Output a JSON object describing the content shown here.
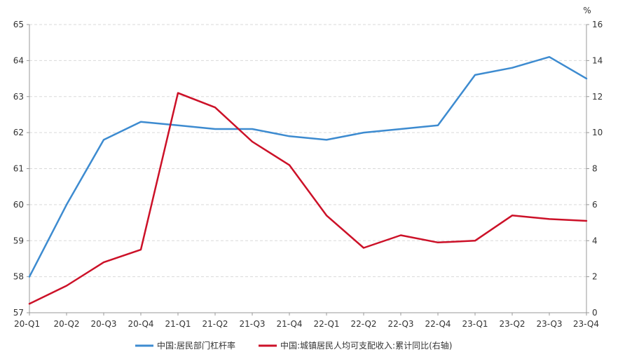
{
  "chart_data": {
    "type": "line",
    "categories": [
      "20-Q1",
      "20-Q2",
      "20-Q3",
      "20-Q4",
      "21-Q1",
      "21-Q2",
      "21-Q3",
      "21-Q4",
      "22-Q1",
      "22-Q2",
      "22-Q3",
      "22-Q4",
      "23-Q1",
      "23-Q2",
      "23-Q3",
      "23-Q4"
    ],
    "y_left": {
      "lim": [
        57,
        65
      ],
      "ticks": [
        57,
        58,
        59,
        60,
        61,
        62,
        63,
        64,
        65
      ]
    },
    "y_right": {
      "lim": [
        0,
        16
      ],
      "ticks": [
        0,
        2,
        4,
        6,
        8,
        10,
        12,
        14,
        16
      ],
      "unit_label": "%"
    },
    "grid": true,
    "legend_position": "bottom",
    "series": [
      {
        "name": "中国:居民部门杠杆率",
        "axis": "left",
        "color": "#3d8bd0",
        "values": [
          58.0,
          60.0,
          61.8,
          62.3,
          62.2,
          62.1,
          62.1,
          61.9,
          61.8,
          62.0,
          62.1,
          62.2,
          63.6,
          63.8,
          64.1,
          63.5
        ]
      },
      {
        "name": "中国:城镇居民人均可支配收入:累计同比(右轴)",
        "axis": "right",
        "color": "#cc1128",
        "values": [
          0.5,
          1.5,
          2.8,
          3.5,
          12.2,
          11.4,
          9.5,
          8.2,
          5.4,
          3.6,
          4.3,
          3.9,
          4.0,
          5.4,
          5.2,
          5.1
        ]
      }
    ]
  }
}
